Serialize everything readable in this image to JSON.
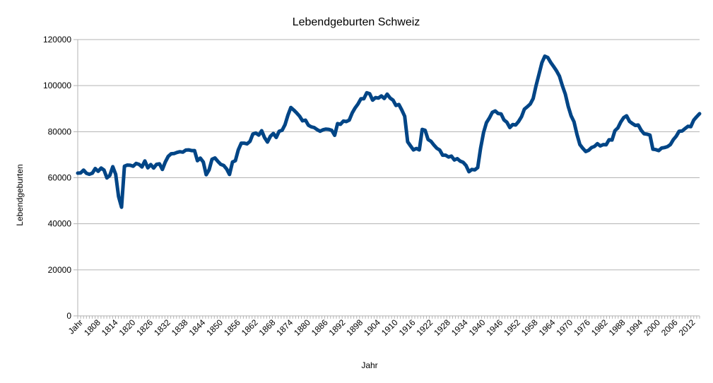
{
  "chart_data": {
    "type": "line",
    "title": "Lebendgeburten Schweiz",
    "xlabel": "Jahr",
    "ylabel": "Lebendgeburten",
    "ylim": [
      0,
      120000
    ],
    "y_ticks": [
      0,
      20000,
      40000,
      60000,
      80000,
      100000,
      120000
    ],
    "x_tick_labels": [
      "Jahr",
      "1808",
      "1814",
      "1820",
      "1826",
      "1832",
      "1838",
      "1844",
      "1850",
      "1856",
      "1862",
      "1868",
      "1874",
      "1880",
      "1886",
      "1892",
      "1898",
      "1904",
      "1910",
      "1916",
      "1922",
      "1928",
      "1934",
      "1940",
      "1946",
      "1952",
      "1958",
      "1964",
      "1970",
      "1976",
      "1982",
      "1988",
      "1994",
      "2000",
      "2006",
      "2012"
    ],
    "grid": true,
    "legend": "none",
    "line_color": "#004586",
    "series": [
      {
        "x": [
          1803,
          1804,
          1805,
          1806,
          1807,
          1808,
          1809,
          1810,
          1811,
          1812,
          1813,
          1814,
          1815,
          1816,
          1817,
          1818,
          1819,
          1820,
          1821,
          1822,
          1823,
          1824,
          1825,
          1826,
          1827,
          1828,
          1829,
          1830,
          1831,
          1832,
          1833,
          1834,
          1835,
          1836,
          1837,
          1838,
          1839,
          1840,
          1841,
          1842,
          1843,
          1844,
          1845,
          1846,
          1847,
          1848,
          1849,
          1850,
          1851,
          1852,
          1853,
          1854,
          1855,
          1856,
          1857,
          1858,
          1859,
          1860,
          1861,
          1862,
          1863,
          1864,
          1865,
          1866,
          1867,
          1868,
          1869,
          1870,
          1871,
          1872,
          1873,
          1874,
          1875,
          1876,
          1877,
          1878,
          1879,
          1880,
          1881,
          1882,
          1883,
          1884,
          1885,
          1886,
          1887,
          1888,
          1889,
          1890,
          1891,
          1892,
          1893,
          1894,
          1895,
          1896,
          1897,
          1898,
          1899,
          1900,
          1901,
          1902,
          1903,
          1904,
          1905,
          1906,
          1907,
          1908,
          1909,
          1910,
          1911,
          1912,
          1913,
          1914,
          1915,
          1916,
          1917,
          1918,
          1919,
          1920,
          1921,
          1922,
          1923,
          1924,
          1925,
          1926,
          1927,
          1928,
          1929,
          1930,
          1931,
          1932,
          1933,
          1934,
          1935,
          1936,
          1937,
          1938,
          1939,
          1940,
          1941,
          1942,
          1943,
          1944,
          1945,
          1946,
          1947,
          1948,
          1949,
          1950,
          1951,
          1952,
          1953,
          1954,
          1955,
          1956,
          1957,
          1958,
          1959,
          1960,
          1961,
          1962,
          1963,
          1964,
          1965,
          1966,
          1967,
          1968,
          1969,
          1970,
          1971,
          1972,
          1973,
          1974,
          1975,
          1976,
          1977,
          1978,
          1979,
          1980,
          1981,
          1982,
          1983,
          1984,
          1985,
          1986,
          1987,
          1988,
          1989,
          1990,
          1991,
          1992,
          1993,
          1994,
          1995,
          1996,
          1997,
          1998,
          1999,
          2000,
          2001,
          2002,
          2003,
          2004,
          2005,
          2006,
          2007,
          2008,
          2009,
          2010,
          2011,
          2012,
          2013,
          2014,
          2015,
          2016
        ],
        "values": [
          62000,
          62100,
          63300,
          61900,
          61500,
          62000,
          64000,
          62800,
          64200,
          63300,
          59900,
          61000,
          64800,
          61500,
          51800,
          47200,
          65000,
          65500,
          65400,
          65000,
          66200,
          65800,
          64700,
          67300,
          64300,
          65700,
          64200,
          65800,
          66000,
          63600,
          66800,
          69300,
          70400,
          70500,
          71000,
          71300,
          71100,
          72000,
          72100,
          71800,
          71800,
          67400,
          68500,
          66800,
          61300,
          63400,
          68000,
          68600,
          67100,
          65800,
          65300,
          63800,
          61400,
          66800,
          67400,
          72100,
          75000,
          75000,
          74700,
          75800,
          79000,
          79400,
          78500,
          80400,
          77400,
          75500,
          78000,
          79200,
          77500,
          80200,
          80600,
          83000,
          87200,
          90500,
          89400,
          88100,
          86700,
          84700,
          85000,
          82800,
          82100,
          81800,
          80900,
          80200,
          80800,
          81100,
          81000,
          80600,
          78400,
          83500,
          83200,
          84600,
          84400,
          85000,
          88100,
          90300,
          92000,
          94300,
          94300,
          96900,
          96500,
          93700,
          94800,
          94600,
          95500,
          94400,
          96300,
          94600,
          93700,
          91400,
          91800,
          89400,
          86700,
          75600,
          73800,
          72100,
          72700,
          72100,
          81000,
          80600,
          76600,
          75800,
          74200,
          72800,
          72000,
          69800,
          69800,
          69000,
          69400,
          67700,
          68300,
          67200,
          66700,
          65300,
          62600,
          63600,
          63400,
          64400,
          72800,
          79600,
          83900,
          85900,
          88400,
          89000,
          87900,
          87700,
          85100,
          84100,
          81800,
          83100,
          82900,
          84400,
          86500,
          89800,
          90800,
          92000,
          94400,
          100000,
          105000,
          110000,
          112800,
          112200,
          110100,
          108300,
          106400,
          104100,
          100000,
          96300,
          91000,
          86900,
          84300,
          78800,
          74400,
          72800,
          71400,
          71900,
          73100,
          73600,
          74800,
          73800,
          74400,
          74300,
          76500,
          76400,
          80400,
          81600,
          84200,
          86100,
          86900,
          84500,
          83500,
          82700,
          82900,
          80600,
          79100,
          78900,
          78500,
          72400,
          72200,
          71800,
          72900,
          73100,
          73500,
          74400,
          76500,
          78000,
          80200,
          80300,
          81300,
          82300,
          82200,
          85000,
          86500,
          87800
        ]
      }
    ]
  }
}
